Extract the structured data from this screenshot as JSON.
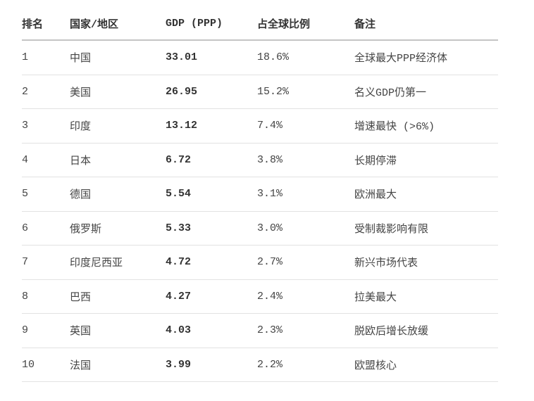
{
  "table": {
    "headers": [
      "排名",
      "国家/地区",
      "GDP (PPP)",
      "占全球比例",
      "备注"
    ],
    "rows": [
      [
        "1",
        "中国",
        "33.01",
        "18.6%",
        "全球最大PPP经济体"
      ],
      [
        "2",
        "美国",
        "26.95",
        "15.2%",
        "名义GDP仍第一"
      ],
      [
        "3",
        "印度",
        "13.12",
        "7.4%",
        "增速最快 (>6%)"
      ],
      [
        "4",
        "日本",
        "6.72",
        "3.8%",
        "长期停滞"
      ],
      [
        "5",
        "德国",
        "5.54",
        "3.1%",
        "欧洲最大"
      ],
      [
        "6",
        "俄罗斯",
        "5.33",
        "3.0%",
        "受制裁影响有限"
      ],
      [
        "7",
        "印度尼西亚",
        "4.72",
        "2.7%",
        "新兴市场代表"
      ],
      [
        "8",
        "巴西",
        "4.27",
        "2.4%",
        "拉美最大"
      ],
      [
        "9",
        "英国",
        "4.03",
        "2.3%",
        "脱欧后增长放缓"
      ],
      [
        "10",
        "法国",
        "3.99",
        "2.2%",
        "欧盟核心"
      ]
    ]
  }
}
